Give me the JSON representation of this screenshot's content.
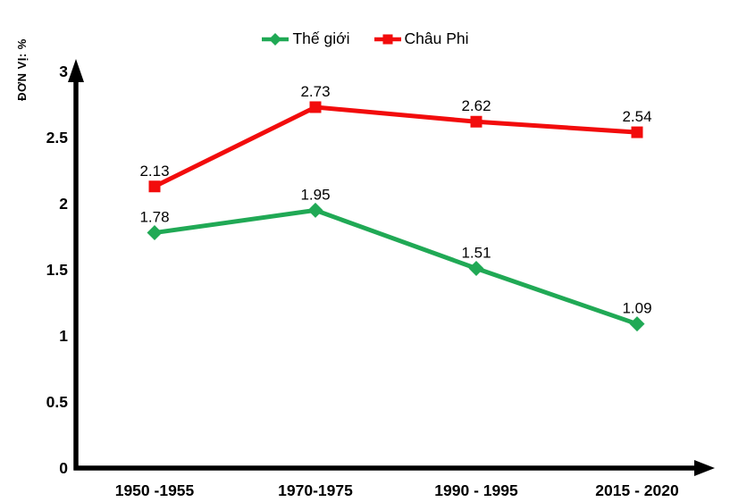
{
  "chart_data": {
    "type": "line",
    "title": "",
    "ylabel": "ĐƠN VỊ: %",
    "xlabel": "",
    "categories": [
      "1950 -1955",
      "1970-1975",
      "1990 - 1995",
      "2015 - 2020"
    ],
    "series": [
      {
        "name": "Thế giới",
        "color": "#20a955",
        "marker": "diamond",
        "values": [
          1.78,
          1.95,
          1.51,
          1.09
        ]
      },
      {
        "name": "Châu Phi",
        "color": "#f20c0c",
        "marker": "square",
        "values": [
          2.13,
          2.73,
          2.62,
          2.54
        ]
      }
    ],
    "ylim": [
      0,
      3
    ],
    "yticks": [
      "0",
      "0.5",
      "1",
      "1.5",
      "2",
      "2.5",
      "3"
    ],
    "grid": false,
    "legend_position": "top-center",
    "axis_color": "#000000",
    "label_color": "#000000",
    "background_color": "#ffffff"
  }
}
